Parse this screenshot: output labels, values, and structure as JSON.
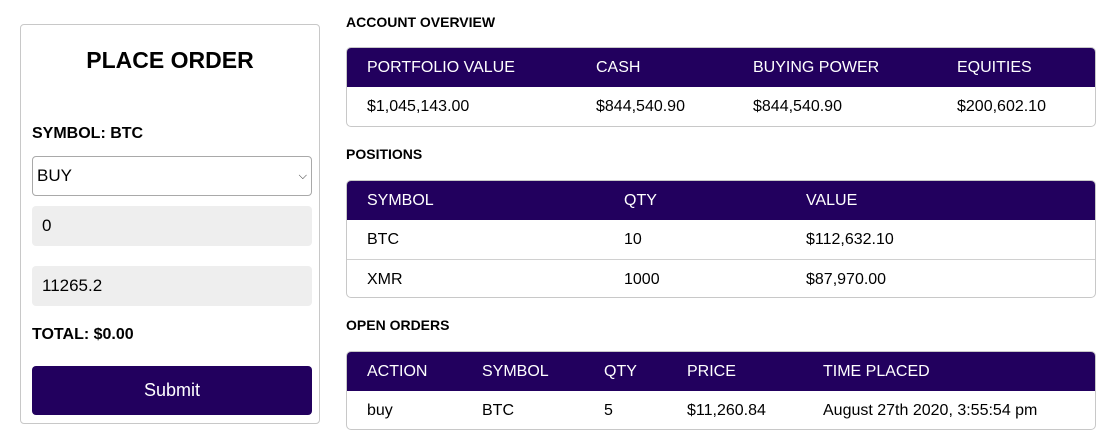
{
  "order": {
    "title": "PLACE ORDER",
    "symbol_label": "SYMBOL: BTC",
    "side": "BUY",
    "quantity": "0",
    "price": "11265.2",
    "total_label": "TOTAL: $0.00",
    "submit_label": "Submit"
  },
  "account": {
    "title": "ACCOUNT OVERVIEW",
    "headers": [
      "PORTFOLIO VALUE",
      "CASH",
      "BUYING POWER",
      "EQUITIES"
    ],
    "values": [
      "$1,045,143.00",
      "$844,540.90",
      "$844,540.90",
      "$200,602.10"
    ]
  },
  "positions": {
    "title": "POSITIONS",
    "headers": [
      "SYMBOL",
      "QTY",
      "VALUE"
    ],
    "rows": [
      [
        "BTC",
        "10",
        "$112,632.10"
      ],
      [
        "XMR",
        "1000",
        "$87,970.00"
      ]
    ]
  },
  "orders": {
    "title": "OPEN ORDERS",
    "headers": [
      "ACTION",
      "SYMBOL",
      "QTY",
      "PRICE",
      "TIME PLACED"
    ],
    "rows": [
      [
        "buy",
        "BTC",
        "5",
        "$11,260.84",
        "August 27th 2020, 3:55:54 pm"
      ]
    ]
  },
  "colors": {
    "accent": "#22005e",
    "field_bg": "#eeeeee",
    "border": "#c8c8c8"
  }
}
